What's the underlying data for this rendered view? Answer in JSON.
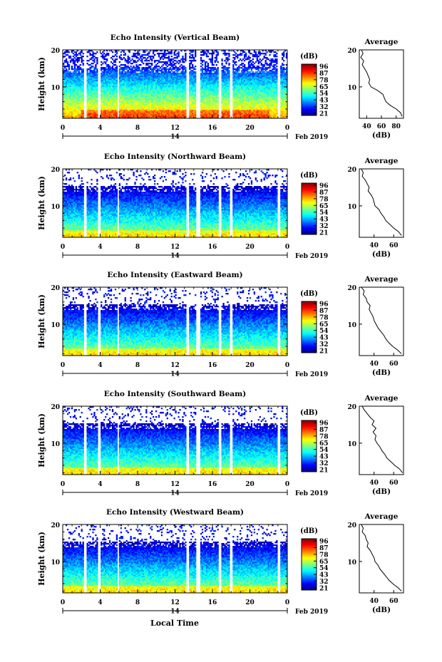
{
  "figure": {
    "xlabel": "Local Time",
    "date_label": "Feb 2019",
    "date_tick": "14",
    "colorbar_unit": "(dB)",
    "colorbar_ticks": [
      "96",
      "87",
      "78",
      "65",
      "54",
      "43",
      "32",
      "21"
    ],
    "average_title": "Average",
    "average_xlabel": "(dB)",
    "ylabel": "Height (km)"
  },
  "chart_data": [
    {
      "type": "heatmap",
      "title": "Echo Intensity (Vertical Beam)",
      "ylabel": "Height (km)",
      "x_ticks": [
        "0",
        "4",
        "8",
        "12",
        "16",
        "20",
        "0"
      ],
      "y_ticks": [
        "20",
        "10"
      ],
      "xlim": [
        0,
        24
      ],
      "ylim": [
        1.5,
        20
      ],
      "colorbar": {
        "unit": "(dB)",
        "ticks": [
          96,
          87,
          78,
          65,
          54,
          43,
          32,
          21
        ]
      },
      "data_gaps_hours": [
        [
          2.2,
          2.5
        ],
        [
          3.8,
          4.1
        ],
        [
          5.8,
          6.0
        ],
        [
          13.2,
          13.5
        ],
        [
          14.3,
          14.7
        ],
        [
          16.6,
          17.0
        ],
        [
          17.9,
          18.2
        ],
        [
          23.0,
          23.3
        ]
      ],
      "average_profile": {
        "title": "Average",
        "xlabel": "(dB)",
        "x_ticks": [
          "40",
          "60",
          "80"
        ],
        "xlim": [
          30,
          90
        ],
        "y_ticks": [
          "20",
          "10"
        ],
        "ylim": [
          1.5,
          20
        ],
        "height_km": [
          20,
          19,
          18,
          17,
          16,
          15,
          14,
          13,
          12,
          11,
          10,
          9,
          8,
          7,
          6,
          5,
          4,
          3,
          2
        ],
        "db": [
          33,
          35,
          32,
          36,
          34,
          37,
          40,
          42,
          44,
          43,
          46,
          55,
          62,
          64,
          66,
          72,
          80,
          86,
          88
        ]
      }
    },
    {
      "type": "heatmap",
      "title": "Echo Intensity (Northward Beam)",
      "ylabel": "Height (km)",
      "x_ticks": [
        "0",
        "4",
        "8",
        "12",
        "16",
        "20",
        "0"
      ],
      "y_ticks": [
        "20",
        "10"
      ],
      "xlim": [
        0,
        24
      ],
      "ylim": [
        1.5,
        20
      ],
      "colorbar": {
        "unit": "(dB)",
        "ticks": [
          96,
          87,
          78,
          65,
          54,
          43,
          32,
          21
        ]
      },
      "data_gaps_hours": [
        [
          2.2,
          2.5
        ],
        [
          3.8,
          4.1
        ],
        [
          5.8,
          6.0
        ],
        [
          13.2,
          13.5
        ],
        [
          14.3,
          14.7
        ],
        [
          16.6,
          17.0
        ],
        [
          17.9,
          18.2
        ],
        [
          23.0,
          23.3
        ]
      ],
      "average_profile": {
        "title": "Average",
        "xlabel": "(dB)",
        "x_ticks": [
          "40",
          "60"
        ],
        "xlim": [
          25,
          70
        ],
        "y_ticks": [
          "20",
          "10"
        ],
        "ylim": [
          1.5,
          20
        ],
        "height_km": [
          20,
          19,
          18,
          17,
          16,
          15,
          14,
          13,
          12,
          11,
          10,
          9,
          8,
          7,
          6,
          5,
          4,
          3,
          2
        ],
        "db": [
          27,
          29,
          28,
          31,
          33,
          35,
          34,
          37,
          39,
          40,
          41,
          45,
          47,
          50,
          52,
          56,
          60,
          65,
          68
        ]
      }
    },
    {
      "type": "heatmap",
      "title": "Echo Intensity (Eastward Beam)",
      "ylabel": "Height (km)",
      "x_ticks": [
        "0",
        "4",
        "8",
        "12",
        "16",
        "20",
        "0"
      ],
      "y_ticks": [
        "20",
        "10"
      ],
      "xlim": [
        0,
        24
      ],
      "ylim": [
        1.5,
        20
      ],
      "colorbar": {
        "unit": "(dB)",
        "ticks": [
          96,
          87,
          78,
          65,
          54,
          43,
          32,
          21
        ]
      },
      "data_gaps_hours": [
        [
          2.2,
          2.5
        ],
        [
          3.8,
          4.1
        ],
        [
          5.8,
          6.0
        ],
        [
          13.2,
          13.5
        ],
        [
          14.3,
          14.7
        ],
        [
          16.6,
          17.0
        ],
        [
          17.9,
          18.2
        ],
        [
          23.0,
          23.3
        ]
      ],
      "average_profile": {
        "title": "Average",
        "xlabel": "(dB)",
        "x_ticks": [
          "40",
          "60"
        ],
        "xlim": [
          25,
          70
        ],
        "y_ticks": [
          "20",
          "10"
        ],
        "ylim": [
          1.5,
          20
        ],
        "height_km": [
          20,
          19,
          18,
          17,
          16,
          15,
          14,
          13,
          12,
          11,
          10,
          9,
          8,
          7,
          6,
          5,
          4,
          3,
          2
        ],
        "db": [
          27,
          30,
          29,
          32,
          33,
          36,
          35,
          37,
          39,
          40,
          42,
          44,
          47,
          50,
          52,
          55,
          59,
          64,
          68
        ]
      }
    },
    {
      "type": "heatmap",
      "title": "Echo Intensity (Southward Beam)",
      "ylabel": "Height (km)",
      "x_ticks": [
        "0",
        "4",
        "8",
        "12",
        "16",
        "20",
        "0"
      ],
      "y_ticks": [
        "20",
        "10"
      ],
      "xlim": [
        0,
        24
      ],
      "ylim": [
        1.5,
        20
      ],
      "colorbar": {
        "unit": "(dB)",
        "ticks": [
          96,
          87,
          78,
          65,
          54,
          43,
          32,
          21
        ]
      },
      "data_gaps_hours": [
        [
          2.2,
          2.5
        ],
        [
          3.8,
          4.1
        ],
        [
          5.8,
          6.0
        ],
        [
          13.2,
          13.5
        ],
        [
          14.3,
          14.7
        ],
        [
          16.6,
          17.0
        ],
        [
          17.9,
          18.2
        ],
        [
          23.0,
          23.3
        ]
      ],
      "average_profile": {
        "title": "Average",
        "xlabel": "(dB)",
        "x_ticks": [
          "40",
          "60"
        ],
        "xlim": [
          25,
          70
        ],
        "y_ticks": [
          "20",
          "10"
        ],
        "ylim": [
          1.5,
          20
        ],
        "height_km": [
          20,
          19,
          18,
          17,
          16,
          15,
          14,
          13,
          12,
          11,
          10,
          9,
          8,
          7,
          6,
          5,
          4,
          3,
          2
        ],
        "db": [
          28,
          30,
          33,
          36,
          40,
          38,
          42,
          39,
          42,
          41,
          43,
          46,
          48,
          51,
          53,
          57,
          61,
          66,
          69
        ]
      }
    },
    {
      "type": "heatmap",
      "title": "Echo Intensity (Westward Beam)",
      "ylabel": "Height (km)",
      "x_ticks": [
        "0",
        "4",
        "8",
        "12",
        "16",
        "20",
        "0"
      ],
      "y_ticks": [
        "20",
        "10"
      ],
      "xlim": [
        0,
        24
      ],
      "ylim": [
        1.5,
        20
      ],
      "colorbar": {
        "unit": "(dB)",
        "ticks": [
          96,
          87,
          78,
          65,
          54,
          43,
          32,
          21
        ]
      },
      "data_gaps_hours": [
        [
          2.2,
          2.5
        ],
        [
          3.8,
          4.1
        ],
        [
          5.8,
          6.0
        ],
        [
          13.2,
          13.5
        ],
        [
          14.3,
          14.7
        ],
        [
          16.6,
          17.0
        ],
        [
          17.9,
          18.2
        ],
        [
          23.0,
          23.3
        ]
      ],
      "average_profile": {
        "title": "Average",
        "xlabel": "(dB)",
        "x_ticks": [
          "40",
          "60"
        ],
        "xlim": [
          25,
          70
        ],
        "y_ticks": [
          "20",
          "10"
        ],
        "ylim": [
          1.5,
          20
        ],
        "height_km": [
          20,
          19,
          18,
          17,
          16,
          15,
          14,
          13,
          12,
          11,
          10,
          9,
          8,
          7,
          6,
          5,
          4,
          3,
          2
        ],
        "db": [
          27,
          29,
          28,
          31,
          32,
          34,
          33,
          36,
          38,
          40,
          41,
          44,
          46,
          49,
          52,
          55,
          59,
          64,
          68
        ]
      }
    }
  ]
}
